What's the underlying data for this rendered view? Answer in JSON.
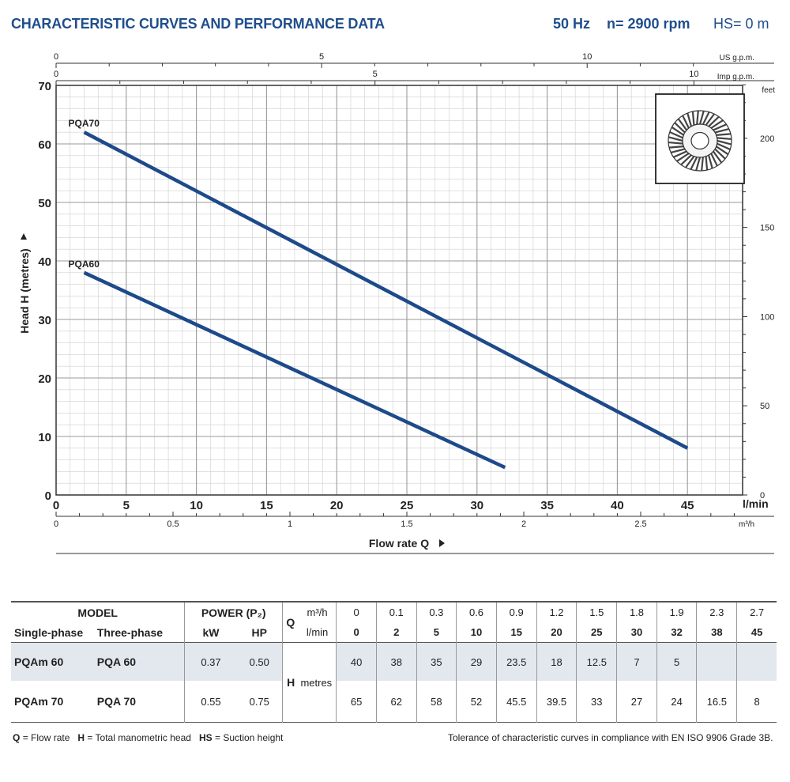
{
  "header": {
    "title": "CHARACTERISTIC CURVES AND PERFORMANCE DATA",
    "frequency": "50 Hz",
    "speed": "n= 2900 rpm",
    "suction": "HS= 0 m"
  },
  "chart_data": {
    "type": "line",
    "ylabel": "Head H  (metres)",
    "xlabel": "Flow rate Q",
    "x_unit": "l/min",
    "ylim": [
      0,
      70
    ],
    "xlim": [
      0,
      50
    ],
    "y_ticks": [
      0,
      10,
      20,
      30,
      40,
      50,
      60,
      70
    ],
    "x_ticks": [
      0,
      5,
      10,
      15,
      20,
      25,
      30,
      35,
      40,
      45
    ],
    "secondary_axes": {
      "top_us": {
        "label": "US g.p.m.",
        "ticks": [
          "0",
          "5",
          "10"
        ]
      },
      "top_imp": {
        "label": "Imp g.p.m.",
        "ticks": [
          "0",
          "5",
          "10"
        ]
      },
      "bottom_m3h": {
        "label": "m³/h",
        "ticks": [
          "0",
          "0.5",
          "1",
          "1.5",
          "2",
          "2.5"
        ]
      },
      "right_feet": {
        "label": "feet",
        "ticks": [
          "0",
          "50",
          "100",
          "150",
          "200"
        ]
      }
    },
    "grid": true,
    "series": [
      {
        "name": "PQA70",
        "x": [
          2,
          45
        ],
        "y": [
          62,
          8
        ]
      },
      {
        "name": "PQA60",
        "x": [
          2,
          32
        ],
        "y": [
          38,
          4.7
        ]
      }
    ],
    "colors": {
      "line": "#1d4a8a",
      "grid_minor": "#cfcfcf",
      "grid_major": "#9a9a9a"
    }
  },
  "table": {
    "model": "MODEL",
    "power": "POWER (P₂)",
    "single_phase": "Single-phase",
    "three_phase": "Three-phase",
    "kw": "kW",
    "hp": "HP",
    "q": "Q",
    "m3h": "m³/h",
    "lmin": "l/min",
    "h": "H",
    "metres": "metres",
    "q_m3h": [
      "0",
      "0.1",
      "0.3",
      "0.6",
      "0.9",
      "1.2",
      "1.5",
      "1.8",
      "1.9",
      "2.3",
      "2.7"
    ],
    "q_lmin": [
      "0",
      "2",
      "5",
      "10",
      "15",
      "20",
      "25",
      "30",
      "32",
      "38",
      "45"
    ],
    "rows": [
      {
        "single": "PQAm 60",
        "three": "PQA 60",
        "kw": "0.37",
        "hp": "0.50",
        "h": [
          "40",
          "38",
          "35",
          "29",
          "23.5",
          "18",
          "12.5",
          "7",
          "5",
          "",
          ""
        ]
      },
      {
        "single": "PQAm 70",
        "three": "PQA 70",
        "kw": "0.55",
        "hp": "0.75",
        "h": [
          "65",
          "62",
          "58",
          "52",
          "45.5",
          "39.5",
          "33",
          "27",
          "24",
          "16.5",
          "8"
        ]
      }
    ]
  },
  "footer": {
    "q_key": "Q",
    "q_def": "= Flow rate",
    "h_key": "H",
    "h_def": "= Total manometric head",
    "hs_key": "HS",
    "hs_def": "= Suction height",
    "tolerance": "Tolerance of characteristic curves in compliance with EN ISO 9906 Grade 3B."
  }
}
